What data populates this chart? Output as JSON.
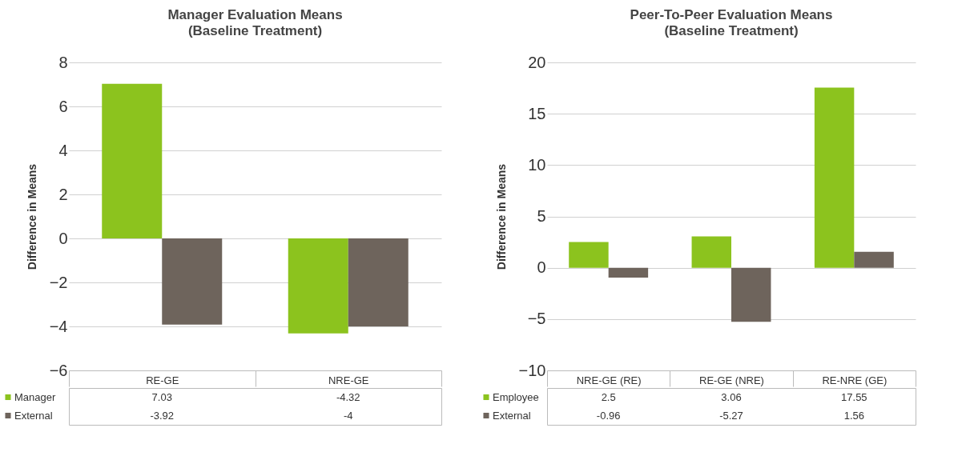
{
  "chart_data": [
    {
      "type": "bar",
      "title": "Manager Evaluation Means",
      "subtitle": "(Baseline Treatment)",
      "ylabel": "Difference in Means",
      "categories": [
        "RE-GE",
        "NRE-GE"
      ],
      "series": [
        {
          "name": "Manager",
          "color": "#8cc31e",
          "values": [
            7.03,
            -4.32
          ]
        },
        {
          "name": "External",
          "color": "#6e645c",
          "values": [
            -3.92,
            -4
          ]
        }
      ],
      "ylim": [
        -6,
        8
      ],
      "yticks": [
        -6,
        -4,
        -2,
        0,
        2,
        4,
        6,
        8
      ],
      "grid": "y",
      "legend": "bottom",
      "data_labels": true
    },
    {
      "type": "bar",
      "title": "Peer-To-Peer Evaluation Means",
      "subtitle": "(Baseline Treatment)",
      "ylabel": "Difference in Means",
      "categories": [
        "NRE-GE (RE)",
        "RE-GE (NRE)",
        "RE-NRE (GE)"
      ],
      "series": [
        {
          "name": "Employee",
          "color": "#8cc31e",
          "values": [
            2.5,
            3.06,
            17.55
          ]
        },
        {
          "name": "External",
          "color": "#6e645c",
          "values": [
            -0.96,
            -5.27,
            1.56
          ]
        }
      ],
      "ylim": [
        -10,
        20
      ],
      "yticks": [
        -10,
        -5,
        0,
        5,
        10,
        15,
        20
      ],
      "grid": "y",
      "legend": "bottom",
      "data_labels": true
    }
  ]
}
